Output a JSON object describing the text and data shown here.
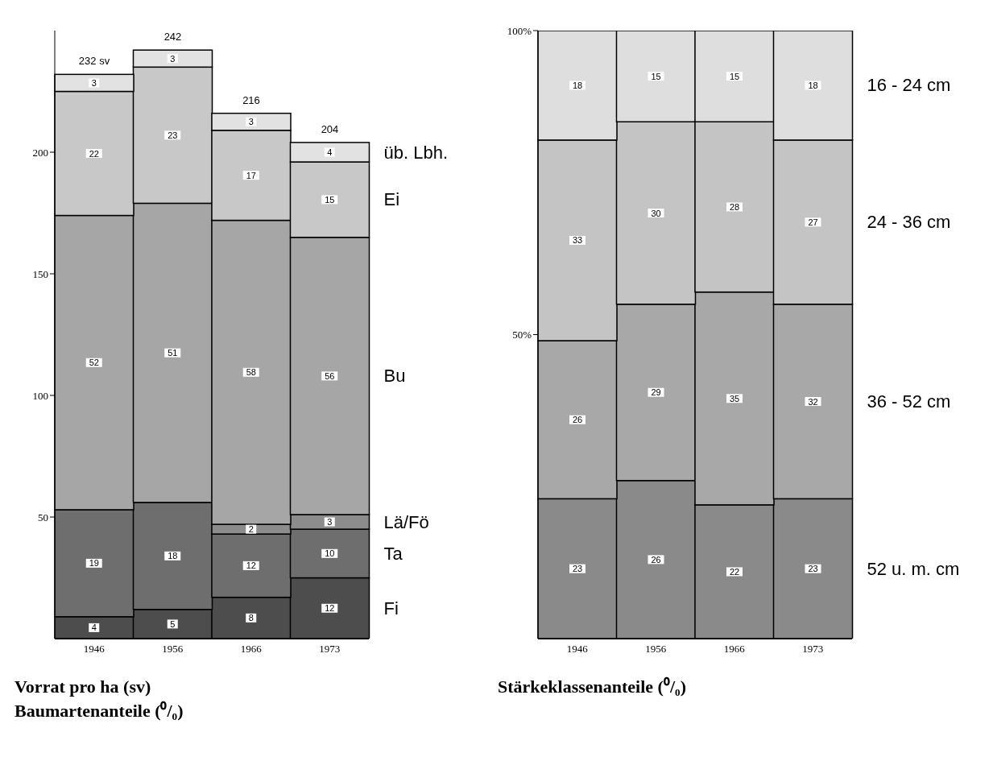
{
  "chart_data": [
    {
      "type": "bar",
      "stacked": true,
      "categories": [
        "1946",
        "1956",
        "1966",
        "1973"
      ],
      "xlabel": "Vorrat pro ha (sv)\nBaumartenanteile (⁰/₀)",
      "ylim": [
        0,
        250
      ],
      "yticks": [
        50,
        100,
        150,
        200
      ],
      "totals": [
        "232 sv",
        "242",
        "216",
        "204"
      ],
      "series": [
        {
          "name": "Fi",
          "color": "#4d4d4d",
          "values": [
            9,
            12,
            17,
            25
          ]
        },
        {
          "name": "Ta",
          "color": "#6e6e6e",
          "values": [
            44,
            44,
            26,
            20
          ]
        },
        {
          "name": "Lä/Fö",
          "color": "#8c8c8c",
          "values": [
            0,
            0,
            4,
            6
          ]
        },
        {
          "name": "Bu",
          "color": "#a6a6a6",
          "values": [
            121,
            123,
            125,
            114
          ]
        },
        {
          "name": "Ei",
          "color": "#c8c8c8",
          "values": [
            51,
            56,
            37,
            31
          ]
        },
        {
          "name": "üb. Lbh.",
          "color": "#e2e2e2",
          "values": [
            7,
            7,
            7,
            8
          ]
        }
      ],
      "annotations": [
        {
          "text": "4",
          "x": "1946",
          "y": 4.5
        },
        {
          "text": "19",
          "x": "1946",
          "y": 31
        },
        {
          "text": "52",
          "x": "1946",
          "y": 113.5
        },
        {
          "text": "22",
          "x": "1946",
          "y": 199.5
        },
        {
          "text": "3",
          "x": "1946",
          "y": 228.5
        },
        {
          "text": "5",
          "x": "1956",
          "y": 6
        },
        {
          "text": "18",
          "x": "1956",
          "y": 34
        },
        {
          "text": "51",
          "x": "1956",
          "y": 117.5
        },
        {
          "text": "23",
          "x": "1956",
          "y": 207
        },
        {
          "text": "3",
          "x": "1956",
          "y": 238.5
        },
        {
          "text": "8",
          "x": "1966",
          "y": 8.5
        },
        {
          "text": "12",
          "x": "1966",
          "y": 30
        },
        {
          "text": "2",
          "x": "1966",
          "y": 45
        },
        {
          "text": "58",
          "x": "1966",
          "y": 109.5
        },
        {
          "text": "17",
          "x": "1966",
          "y": 190.5
        },
        {
          "text": "3",
          "x": "1966",
          "y": 212.5
        },
        {
          "text": "12",
          "x": "1973",
          "y": 12.5
        },
        {
          "text": "10",
          "x": "1973",
          "y": 35
        },
        {
          "text": "3",
          "x": "1973",
          "y": 48
        },
        {
          "text": "56",
          "x": "1973",
          "y": 108
        },
        {
          "text": "15",
          "x": "1973",
          "y": 180.5
        },
        {
          "text": "4",
          "x": "1973",
          "y": 200
        }
      ]
    },
    {
      "type": "bar",
      "stacked": true,
      "data_labels": true,
      "categories": [
        "1946",
        "1956",
        "1966",
        "1973"
      ],
      "xlabel": "Stärkeklassenanteile (⁰/₀)",
      "ylim": [
        0,
        100
      ],
      "yticks": [
        {
          "value": 50,
          "label": "50%"
        },
        {
          "value": 100,
          "label": "100%"
        }
      ],
      "series": [
        {
          "name": "52 u. m. cm",
          "color": "#8a8a8a",
          "values": [
            23,
            26,
            22,
            23
          ]
        },
        {
          "name": "36 - 52 cm",
          "color": "#a8a8a8",
          "values": [
            26,
            29,
            35,
            32
          ]
        },
        {
          "name": "24 - 36 cm",
          "color": "#c4c4c4",
          "values": [
            33,
            30,
            28,
            27
          ]
        },
        {
          "name": "16 - 24 cm",
          "color": "#dedede",
          "values": [
            18,
            15,
            15,
            18
          ]
        }
      ]
    }
  ]
}
